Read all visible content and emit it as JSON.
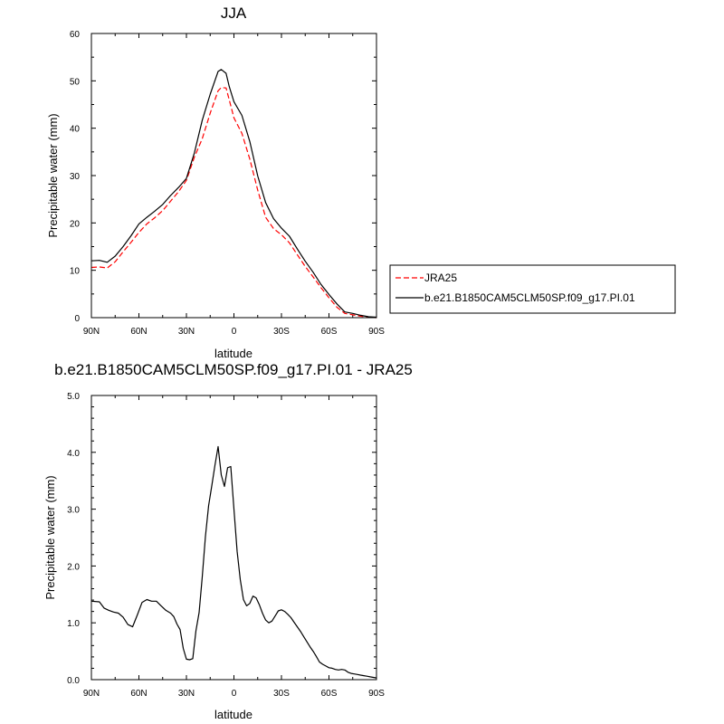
{
  "chart_data": [
    {
      "type": "line",
      "title": "JJA",
      "xlabel": "latitude",
      "ylabel": "Precipitable water (mm)",
      "xlim": [
        90,
        -90
      ],
      "ylim": [
        0,
        60
      ],
      "x_tick_values": [
        90,
        60,
        30,
        0,
        -30,
        -60,
        -90
      ],
      "x_tick_labels": [
        "90N",
        "60N",
        "30N",
        "0",
        "30S",
        "60S",
        "90S"
      ],
      "y_tick_values": [
        0,
        10,
        20,
        30,
        40,
        50,
        60
      ],
      "y_tick_labels": [
        "0",
        "10",
        "20",
        "30",
        "40",
        "50",
        "60"
      ],
      "legend_position": "right",
      "series": [
        {
          "name": "JRA25",
          "color": "#ff0000",
          "dash": "dashed",
          "x": [
            90,
            85,
            80,
            75,
            70,
            65,
            60,
            55,
            50,
            45,
            40,
            35,
            30,
            25,
            20,
            15,
            10,
            8,
            5,
            3,
            0,
            -5,
            -10,
            -15,
            -20,
            -25,
            -30,
            -35,
            -40,
            -45,
            -50,
            -55,
            -60,
            -65,
            -70,
            -75,
            -80,
            -85,
            -90
          ],
          "values": [
            10.6,
            10.7,
            10.5,
            11.8,
            13.9,
            15.9,
            18.0,
            19.8,
            21.1,
            22.6,
            24.6,
            26.6,
            29.0,
            33.9,
            37.8,
            43.2,
            47.9,
            48.6,
            48.5,
            46.0,
            42.2,
            38.9,
            33.5,
            26.9,
            21.2,
            18.8,
            17.5,
            15.8,
            13.3,
            10.8,
            8.6,
            6.3,
            4.2,
            2.2,
            0.9,
            0.6,
            0.3,
            0.1,
            0.0
          ]
        },
        {
          "name": "b.e21.B1850CAM5CLM50SP.f09_g17.PI.01",
          "color": "#000000",
          "dash": "solid",
          "x": [
            90,
            85,
            80,
            75,
            70,
            65,
            60,
            55,
            50,
            45,
            40,
            35,
            30,
            25,
            20,
            15,
            10,
            8,
            5,
            3,
            0,
            -5,
            -10,
            -15,
            -20,
            -25,
            -30,
            -35,
            -40,
            -45,
            -50,
            -55,
            -60,
            -65,
            -70,
            -75,
            -80,
            -85,
            -90
          ],
          "values": [
            12.0,
            12.1,
            11.7,
            13.0,
            15.0,
            17.3,
            19.8,
            21.2,
            22.5,
            23.9,
            25.8,
            27.5,
            29.4,
            34.8,
            41.7,
            47.2,
            52.0,
            52.4,
            51.6,
            48.8,
            45.6,
            42.7,
            37.2,
            29.9,
            24.3,
            20.9,
            18.9,
            17.2,
            14.5,
            11.9,
            9.6,
            7.0,
            4.9,
            2.9,
            1.2,
            0.9,
            0.5,
            0.2,
            0.1
          ]
        }
      ]
    },
    {
      "type": "line",
      "title": "b.e21.B1850CAM5CLM50SP.f09_g17.PI.01 - JRA25",
      "xlabel": "latitude",
      "ylabel": "Precipitable water (mm)",
      "xlim": [
        90,
        -90
      ],
      "ylim": [
        0,
        5
      ],
      "x_tick_values": [
        90,
        60,
        30,
        0,
        -30,
        -60,
        -90
      ],
      "x_tick_labels": [
        "90N",
        "60N",
        "30N",
        "0",
        "30S",
        "60S",
        "90S"
      ],
      "y_tick_values": [
        0,
        1,
        2,
        3,
        4,
        5
      ],
      "y_tick_labels": [
        "0.0",
        "1.0",
        "2.0",
        "3.0",
        "4.0",
        "5.0"
      ],
      "series": [
        {
          "color": "#000000",
          "dash": "solid",
          "x": [
            90,
            85,
            82,
            79,
            76,
            73,
            70,
            67,
            64,
            61,
            58,
            55,
            52,
            49,
            46,
            43,
            40,
            38,
            36,
            34,
            32,
            30,
            28,
            26,
            24,
            22,
            20,
            18,
            16,
            14,
            12,
            10,
            8,
            6,
            4,
            2,
            0,
            -2,
            -4,
            -6,
            -8,
            -10,
            -12,
            -14,
            -16,
            -18,
            -20,
            -22,
            -24,
            -26,
            -28,
            -30,
            -32,
            -34,
            -36,
            -38,
            -40,
            -42,
            -44,
            -46,
            -48,
            -50,
            -52,
            -54,
            -56,
            -58,
            -60,
            -62,
            -64,
            -66,
            -68,
            -70,
            -72,
            -74,
            -76,
            -78,
            -80,
            -82,
            -84,
            -86,
            -88,
            -90
          ],
          "values": [
            1.38,
            1.37,
            1.26,
            1.22,
            1.19,
            1.17,
            1.1,
            0.97,
            0.93,
            1.14,
            1.36,
            1.41,
            1.38,
            1.38,
            1.3,
            1.22,
            1.17,
            1.11,
            0.98,
            0.88,
            0.55,
            0.36,
            0.35,
            0.37,
            0.86,
            1.18,
            1.81,
            2.52,
            3.06,
            3.41,
            3.77,
            4.1,
            3.6,
            3.4,
            3.73,
            3.75,
            3.0,
            2.26,
            1.76,
            1.41,
            1.3,
            1.34,
            1.47,
            1.44,
            1.32,
            1.17,
            1.05,
            1.0,
            1.03,
            1.12,
            1.21,
            1.23,
            1.2,
            1.15,
            1.09,
            1.01,
            0.93,
            0.85,
            0.76,
            0.67,
            0.58,
            0.5,
            0.41,
            0.31,
            0.27,
            0.24,
            0.21,
            0.2,
            0.18,
            0.17,
            0.18,
            0.17,
            0.13,
            0.11,
            0.1,
            0.09,
            0.08,
            0.07,
            0.06,
            0.05,
            0.04,
            0.03
          ]
        }
      ]
    }
  ]
}
